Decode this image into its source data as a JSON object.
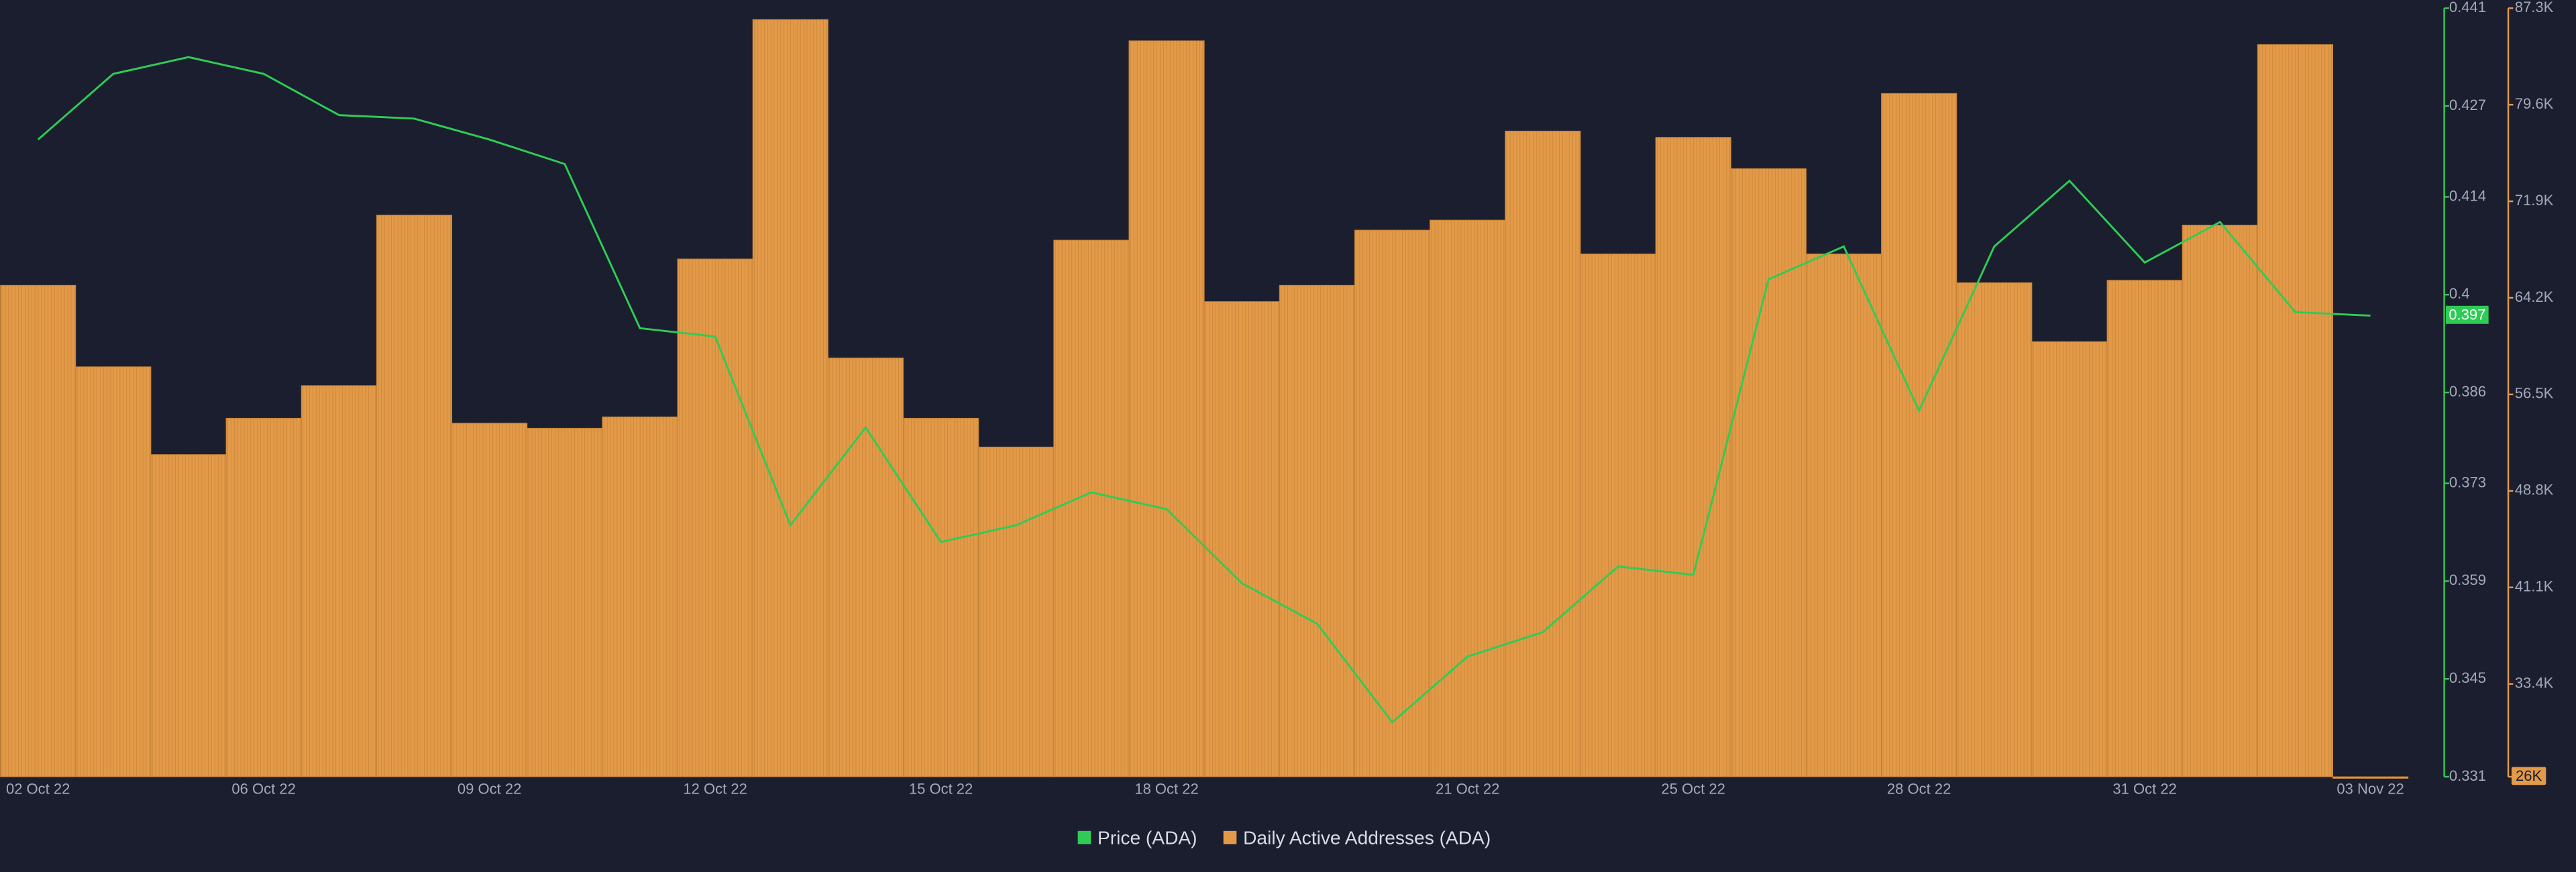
{
  "chart_data": {
    "type": "bar-line",
    "categories": [
      "02 Oct 22",
      null,
      null,
      "06 Oct 22",
      null,
      null,
      "09 Oct 22",
      null,
      null,
      "12 Oct 22",
      null,
      null,
      "15 Oct 22",
      null,
      null,
      "18 Oct 22",
      null,
      null,
      null,
      "21 Oct 22",
      null,
      null,
      "25 Oct 22",
      null,
      null,
      "28 Oct 22",
      null,
      null,
      "31 Oct 22",
      null,
      null,
      "03 Nov 22"
    ],
    "series": [
      {
        "name": "Price (ADA)",
        "type": "line",
        "axis": "y",
        "color": "#2ecc55",
        "values": [
          0.4222,
          0.4316,
          0.434,
          0.4316,
          0.4257,
          0.4252,
          0.4222,
          0.4187,
          0.3952,
          0.394,
          0.367,
          0.381,
          0.3646,
          0.367,
          0.3717,
          0.3693,
          0.3587,
          0.3529,
          0.3388,
          0.3482,
          0.3517,
          0.3611,
          0.3599,
          0.4022,
          0.4069,
          0.3834,
          0.4069,
          0.4163,
          0.4046,
          0.4104,
          0.3975,
          0.397
        ]
      },
      {
        "name": "Daily Active Addresses (ADA)",
        "type": "bar",
        "axis": "y2",
        "color": "#e39a48",
        "values": [
          65200,
          58700,
          51700,
          54600,
          57200,
          70800,
          54200,
          53800,
          54700,
          67300,
          86400,
          59400,
          54600,
          52300,
          68800,
          84700,
          63900,
          65200,
          69600,
          70400,
          77500,
          67700,
          77000,
          74500,
          67700,
          80500,
          65400,
          60700,
          65600,
          70000,
          84400,
          26000
        ]
      }
    ],
    "ylim": [
      0.331,
      0.441
    ],
    "yticks": [
      0.331,
      0.345,
      0.359,
      0.373,
      0.386,
      0.4,
      0.414,
      0.427,
      0.441
    ],
    "y2lim": [
      26000,
      87300
    ],
    "y2ticks": [
      {
        "value": 26000,
        "label": "26K"
      },
      {
        "value": 33400,
        "label": "33.4K"
      },
      {
        "value": 41100,
        "label": "41.1K"
      },
      {
        "value": 48800,
        "label": "48.8K"
      },
      {
        "value": 56500,
        "label": "56.5K"
      },
      {
        "value": 64200,
        "label": "64.2K"
      },
      {
        "value": 71900,
        "label": "71.9K"
      },
      {
        "value": 79600,
        "label": "79.6K"
      },
      {
        "value": 87300,
        "label": "87.3K"
      }
    ],
    "legend": "bottom"
  }
}
